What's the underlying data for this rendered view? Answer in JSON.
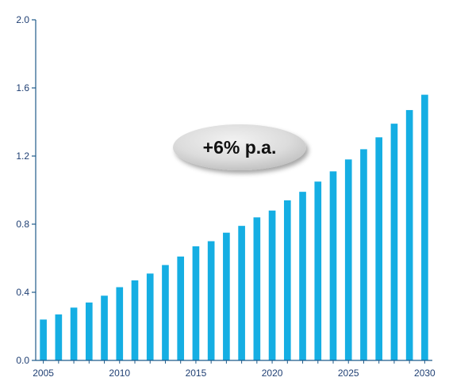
{
  "chart_data": {
    "type": "bar",
    "title": "",
    "xlabel": "",
    "ylabel": "",
    "x": [
      2005,
      2006,
      2007,
      2008,
      2009,
      2010,
      2011,
      2012,
      2013,
      2014,
      2015,
      2016,
      2017,
      2018,
      2019,
      2020,
      2021,
      2022,
      2023,
      2024,
      2025,
      2026,
      2027,
      2028,
      2029,
      2030
    ],
    "values": [
      0.24,
      0.27,
      0.31,
      0.34,
      0.38,
      0.43,
      0.47,
      0.51,
      0.56,
      0.61,
      0.67,
      0.7,
      0.75,
      0.79,
      0.84,
      0.88,
      0.94,
      0.99,
      1.05,
      1.11,
      1.18,
      1.24,
      1.31,
      1.39,
      1.47,
      1.56
    ],
    "ylim": [
      0,
      2.0
    ],
    "yticks": [
      0.0,
      0.4,
      0.8,
      1.2,
      1.6,
      2.0
    ],
    "ytick_labels": [
      "0.0",
      "0.4",
      "0.8",
      "1.2",
      "1.6",
      "2.0"
    ],
    "xticks": [
      2005,
      2010,
      2015,
      2020,
      2025,
      2030
    ],
    "xtick_labels": [
      "2005",
      "2010",
      "2015",
      "2020",
      "2025",
      "2030"
    ],
    "grid": false,
    "legend": "none",
    "bar_color": "#15aee3",
    "axis_color": "#1f5a8a",
    "annotation": {
      "text": "+6% p.a.",
      "fill_color": "#d9d9d9"
    }
  }
}
